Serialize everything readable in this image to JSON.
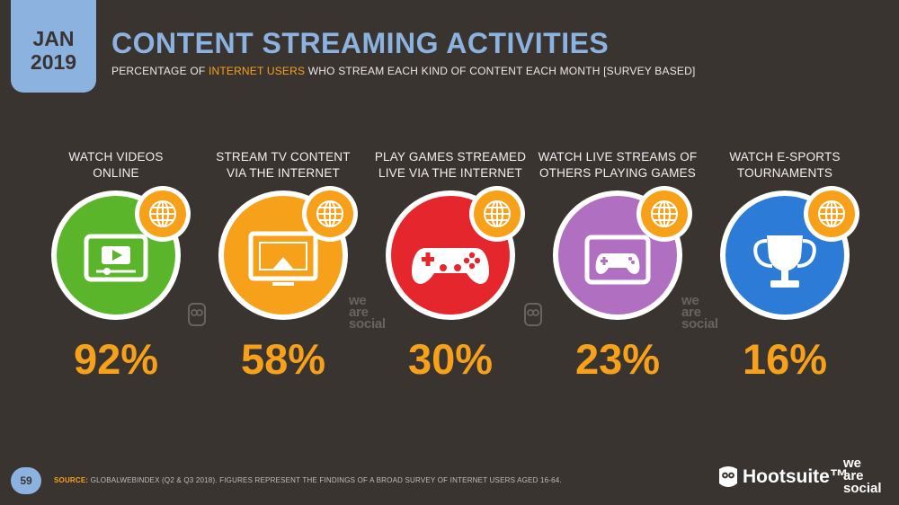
{
  "header": {
    "date_month": "JAN",
    "date_year": "2019",
    "title": "CONTENT STREAMING ACTIVITIES",
    "subtitle_pre": "PERCENTAGE OF ",
    "subtitle_highlight": "INTERNET USERS",
    "subtitle_post": " WHO STREAM EACH KIND OF CONTENT EACH MONTH [SURVEY BASED]"
  },
  "chart_data": {
    "type": "table",
    "unit": "%",
    "categories": [
      "WATCH VIDEOS\nONLINE",
      "STREAM TV CONTENT\nVIA THE INTERNET",
      "PLAY GAMES STREAMED\nLIVE VIA THE INTERNET",
      "WATCH LIVE STREAMS OF\nOTHERS PLAYING GAMES",
      "WATCH E-SPORTS\nTOURNAMENTS"
    ],
    "values": [
      92,
      58,
      30,
      23,
      16
    ],
    "value_labels": [
      "92%",
      "58%",
      "30%",
      "23%",
      "16%"
    ],
    "colors": [
      "#5ab52a",
      "#f7a11a",
      "#e5262c",
      "#b06fc0",
      "#2c7bd6"
    ],
    "icons": [
      "video-player-icon",
      "tv-airplay-icon",
      "gamepad-icon",
      "screen-gamepad-icon",
      "trophy-icon"
    ]
  },
  "theme": {
    "background": "#3a3431",
    "accent": "#8cb3e0",
    "value_color": "#f7a11a",
    "globe_badge": "#f7a11a"
  },
  "footer": {
    "page_number": "59",
    "source_label": "SOURCE:",
    "source_text": " GLOBALWEBINDEX (Q2 & Q3 2018). FIGURES REPRESENT THE FINDINGS OF A BROAD SURVEY OF INTERNET USERS AGED 16-64.",
    "brand_hootsuite": "Hootsuite™",
    "brand_was": [
      "we",
      "are",
      "social"
    ]
  }
}
